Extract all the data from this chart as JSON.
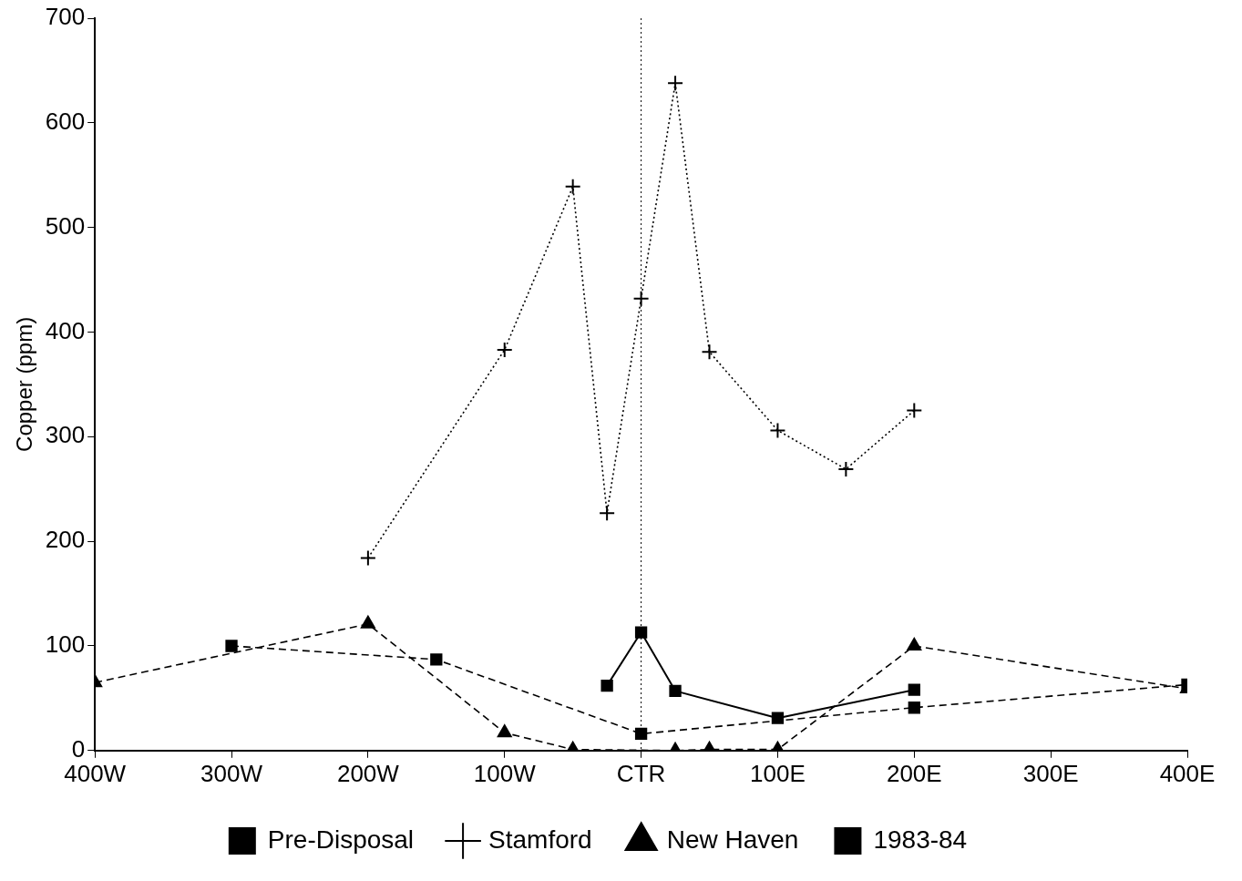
{
  "chart_data": {
    "type": "line",
    "ylabel": "Copper (ppm)",
    "xlim": [
      -400,
      400
    ],
    "xticks": [
      {
        "value": -400,
        "label": "400W"
      },
      {
        "value": -300,
        "label": "300W"
      },
      {
        "value": -200,
        "label": "200W"
      },
      {
        "value": -100,
        "label": "100W"
      },
      {
        "value": 0,
        "label": "CTR"
      },
      {
        "value": 100,
        "label": "100E"
      },
      {
        "value": 200,
        "label": "200E"
      },
      {
        "value": 300,
        "label": "300E"
      },
      {
        "value": 400,
        "label": "400E"
      }
    ],
    "ylim": [
      0,
      700
    ],
    "yticks": [
      0,
      100,
      200,
      300,
      400,
      500,
      600,
      700
    ],
    "grid": false,
    "legend": "bottom",
    "ref_lines": [
      {
        "axis": "x",
        "value": 0,
        "line_style": "dotted",
        "color": "#000000"
      }
    ],
    "series": [
      {
        "name": "Pre-Disposal",
        "color": "#000000",
        "marker": "square",
        "line_style": "solid",
        "x": [
          -25,
          0,
          25,
          100,
          200
        ],
        "values": [
          62,
          113,
          57,
          31,
          58
        ]
      },
      {
        "name": "Stamford",
        "color": "#000000",
        "marker": "cross",
        "line_style": "dotted",
        "x": [
          -200,
          -100,
          -50,
          -25,
          0,
          25,
          50,
          100,
          150,
          200
        ],
        "values": [
          184,
          383,
          539,
          227,
          432,
          638,
          381,
          306,
          269,
          325
        ]
      },
      {
        "name": "New Haven",
        "color": "#000000",
        "marker": "triangle",
        "line_style": "dashed",
        "x": [
          -400,
          -200,
          -100,
          -50,
          25,
          50,
          100,
          200,
          400
        ],
        "values": [
          65,
          121,
          17,
          1,
          0,
          1,
          1,
          100,
          59
        ]
      },
      {
        "name": "1983-84",
        "color": "#000000",
        "marker": "square",
        "line_style": "dashed",
        "x": [
          -300,
          -150,
          0,
          200,
          400
        ],
        "values": [
          100,
          87,
          16,
          41,
          63
        ]
      }
    ]
  }
}
